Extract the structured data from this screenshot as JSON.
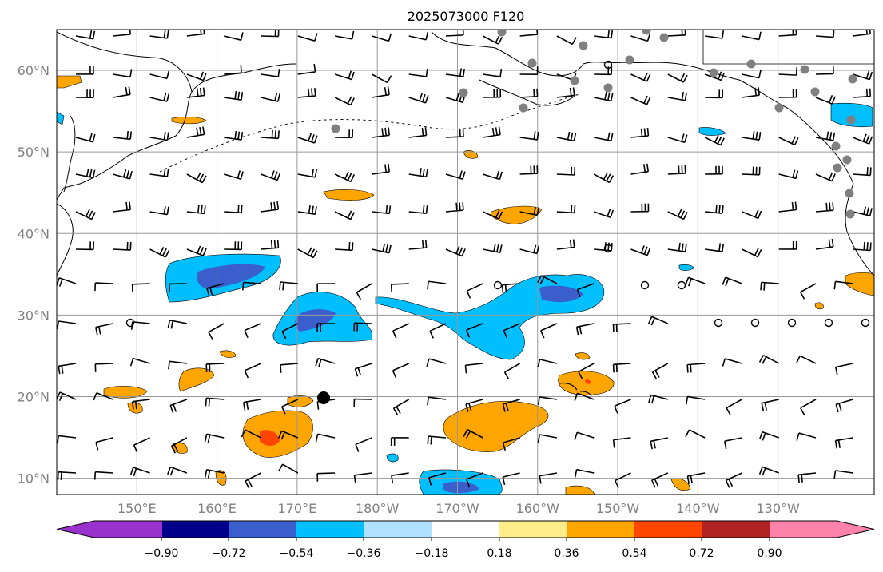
{
  "title": "2025073000 F120",
  "map": {
    "lat_labels": [
      "60°N",
      "50°N",
      "40°N",
      "30°N",
      "20°N",
      "10°N"
    ],
    "lon_labels": [
      "150°E",
      "160°E",
      "170°E",
      "180°W",
      "170°W",
      "160°W",
      "150°W",
      "140°W",
      "130°W"
    ],
    "lat_values": [
      60,
      50,
      40,
      30,
      20,
      10
    ],
    "lon_values": [
      150,
      160,
      170,
      180,
      190,
      200,
      210,
      220,
      230
    ],
    "lon_range": [
      140,
      242
    ],
    "lat_range": [
      8,
      65
    ],
    "grid": true,
    "colors": {
      "coast": "#000000",
      "grid": "#999999",
      "tick_label": "#808080",
      "station_dot": "#808080"
    }
  },
  "colorbar": {
    "tick_labels": [
      "−0.90",
      "−0.72",
      "−0.54",
      "−0.36",
      "−0.18",
      "0.18",
      "0.36",
      "0.54",
      "0.72",
      "0.90"
    ],
    "tick_values": [
      -0.9,
      -0.72,
      -0.54,
      -0.36,
      -0.18,
      0.18,
      0.36,
      0.54,
      0.72,
      0.9
    ],
    "colors": [
      "#9a32cd",
      "#00008b",
      "#3a5fcd",
      "#00bfff",
      "#b0e2ff",
      "#ffffff",
      "#ffec8b",
      "#ffa500",
      "#ff4500",
      "#b22222",
      "#ff82ab"
    ],
    "extend": "both"
  },
  "overlays": {
    "wind_barbs": "wind-barb-field",
    "station_marker": "black-dot-marker",
    "calm_circles": "calm-wind-circles"
  }
}
